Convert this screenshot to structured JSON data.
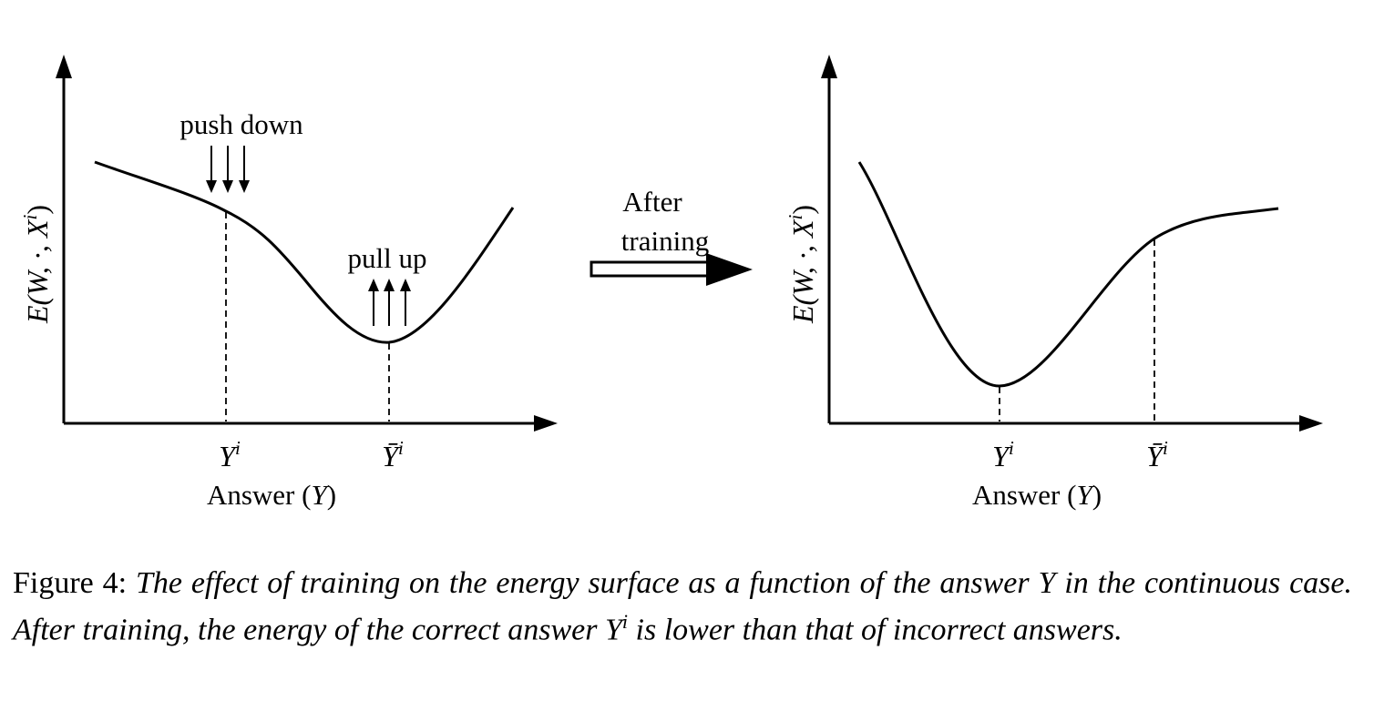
{
  "panels": {
    "left": {
      "y_axis_label": "E(W, ·, X",
      "y_axis_label_sup": "i",
      "y_axis_label_close": ")",
      "x_axis_label": "Answer (",
      "x_axis_label_var": "Y",
      "x_axis_label_close": ")",
      "tick_correct": "Y",
      "tick_correct_sup": "i",
      "tick_incorrect": "Ȳ",
      "tick_incorrect_sup": "i",
      "annotation_push": "push down",
      "annotation_pull": "pull up"
    },
    "right": {
      "y_axis_label": "E(W, ·, X",
      "y_axis_label_sup": "i",
      "y_axis_label_close": ")",
      "x_axis_label": "Answer (",
      "x_axis_label_var": "Y",
      "x_axis_label_close": ")",
      "tick_correct": "Y",
      "tick_correct_sup": "i",
      "tick_incorrect": "Ȳ",
      "tick_incorrect_sup": "i"
    }
  },
  "transition": {
    "line1": "After",
    "line2": "training"
  },
  "caption": {
    "label": "Figure 4:",
    "text_before": " The effect of training on the energy surface as a function of the answer ",
    "var1": "Y",
    "text_middle": " in the continuous case. After training, the energy of the correct answer ",
    "var2": "Y",
    "var2_sup": "i",
    "text_after": " is lower than that of incorrect answers."
  }
}
